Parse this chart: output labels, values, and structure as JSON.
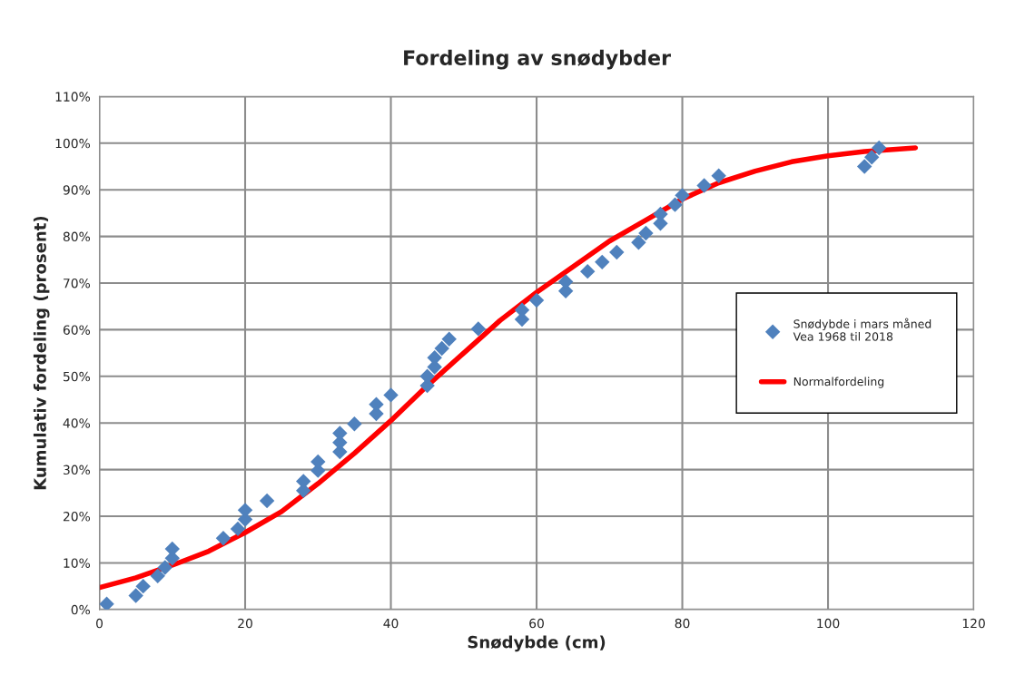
{
  "chart_data": {
    "type": "scatter",
    "title": "Fordeling av snødybder",
    "xlabel": "Snødybde (cm)",
    "ylabel": "Kumulativ fordeling (prosent)",
    "xlim": [
      0,
      120
    ],
    "xticks": [
      0,
      20,
      40,
      60,
      80,
      100,
      120
    ],
    "ylim": [
      0,
      110
    ],
    "yticks": [
      {
        "value": 0,
        "label": "0%"
      },
      {
        "value": 10,
        "label": "10%"
      },
      {
        "value": 20,
        "label": "20%"
      },
      {
        "value": 30,
        "label": "30%"
      },
      {
        "value": 40,
        "label": "40%"
      },
      {
        "value": 50,
        "label": "50%"
      },
      {
        "value": 60,
        "label": "60%"
      },
      {
        "value": 70,
        "label": "70%"
      },
      {
        "value": 80,
        "label": "80%"
      },
      {
        "value": 90,
        "label": "90%"
      },
      {
        "value": 100,
        "label": "100%"
      },
      {
        "value": 110,
        "label": "110%"
      }
    ],
    "grid": true,
    "legend": "right",
    "series": [
      {
        "name": "Snødybde i mars måned\nVea 1968 til 2018",
        "marker": "diamond",
        "color": "#4f81bd",
        "x": [
          1,
          5,
          6,
          8,
          9,
          10,
          10,
          17,
          19,
          20,
          20,
          23,
          28,
          28,
          30,
          30,
          33,
          33,
          33,
          35,
          38,
          38,
          40,
          45,
          45,
          46,
          46,
          47,
          48,
          52,
          58,
          58,
          60,
          64,
          64,
          67,
          69,
          71,
          74,
          75,
          77,
          77,
          79,
          80,
          83,
          85,
          105,
          106,
          107
        ],
        "values": [
          1.2,
          3,
          5,
          7.2,
          9,
          11,
          13,
          15.3,
          17.3,
          19.3,
          21.3,
          23.3,
          25.5,
          27.5,
          29.8,
          31.7,
          33.8,
          35.8,
          37.8,
          39.8,
          42,
          44,
          46,
          48,
          50,
          52,
          54,
          56,
          58,
          60.2,
          62.2,
          64.2,
          66.3,
          68.3,
          70.3,
          72.5,
          74.5,
          76.6,
          78.7,
          80.7,
          82.8,
          84.8,
          86.8,
          88.8,
          90.9,
          93,
          95,
          97,
          99
        ]
      },
      {
        "name": "Normalfordeling",
        "type": "line",
        "marker": "none",
        "line_style": "solid",
        "color": "#ff0000",
        "x": [
          0,
          5,
          10,
          15,
          20,
          25,
          30,
          35,
          40,
          45,
          50,
          55,
          60,
          65,
          70,
          75,
          80,
          85,
          90,
          95,
          100,
          105,
          112
        ],
        "values": [
          4.7,
          6.8,
          9.5,
          12.5,
          16.5,
          21,
          27,
          33.5,
          40.5,
          48,
          55,
          62,
          68,
          73.5,
          79,
          83.5,
          88,
          91.5,
          94,
          96,
          97.3,
          98.2,
          99
        ]
      }
    ]
  }
}
